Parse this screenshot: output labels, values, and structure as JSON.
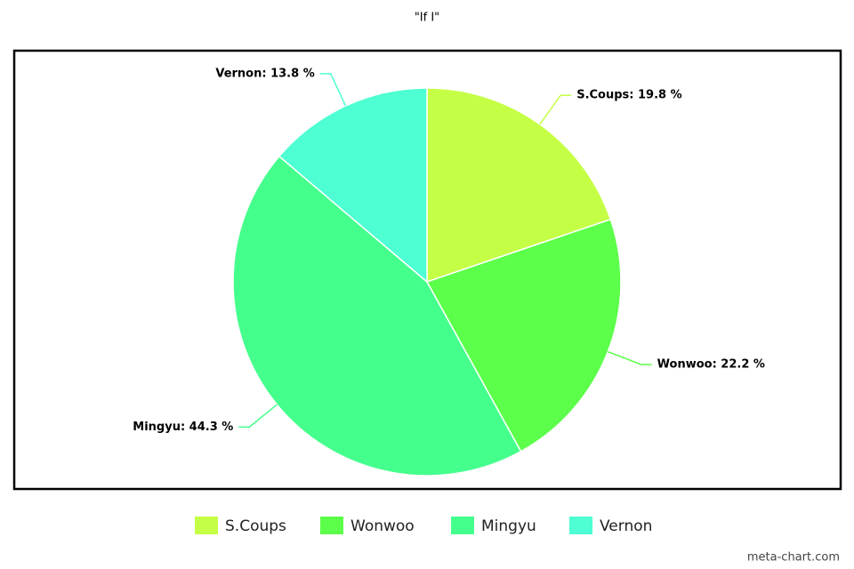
{
  "chart_data": {
    "type": "pie",
    "title": "\"If I\"",
    "categories": [
      "S.Coups",
      "Wonwoo",
      "Mingyu",
      "Vernon"
    ],
    "values": [
      19.8,
      22.2,
      44.3,
      13.8
    ],
    "value_labels": [
      "S.Coups: 19.8 %",
      "Wonwoo: 22.2 %",
      "Mingyu: 44.3 %",
      "Vernon: 13.8 %"
    ],
    "colors": [
      "#c5ff45",
      "#5cff4a",
      "#45ff8d",
      "#4dffd2"
    ],
    "legend": "bottom",
    "watermark": "meta-chart.com"
  }
}
